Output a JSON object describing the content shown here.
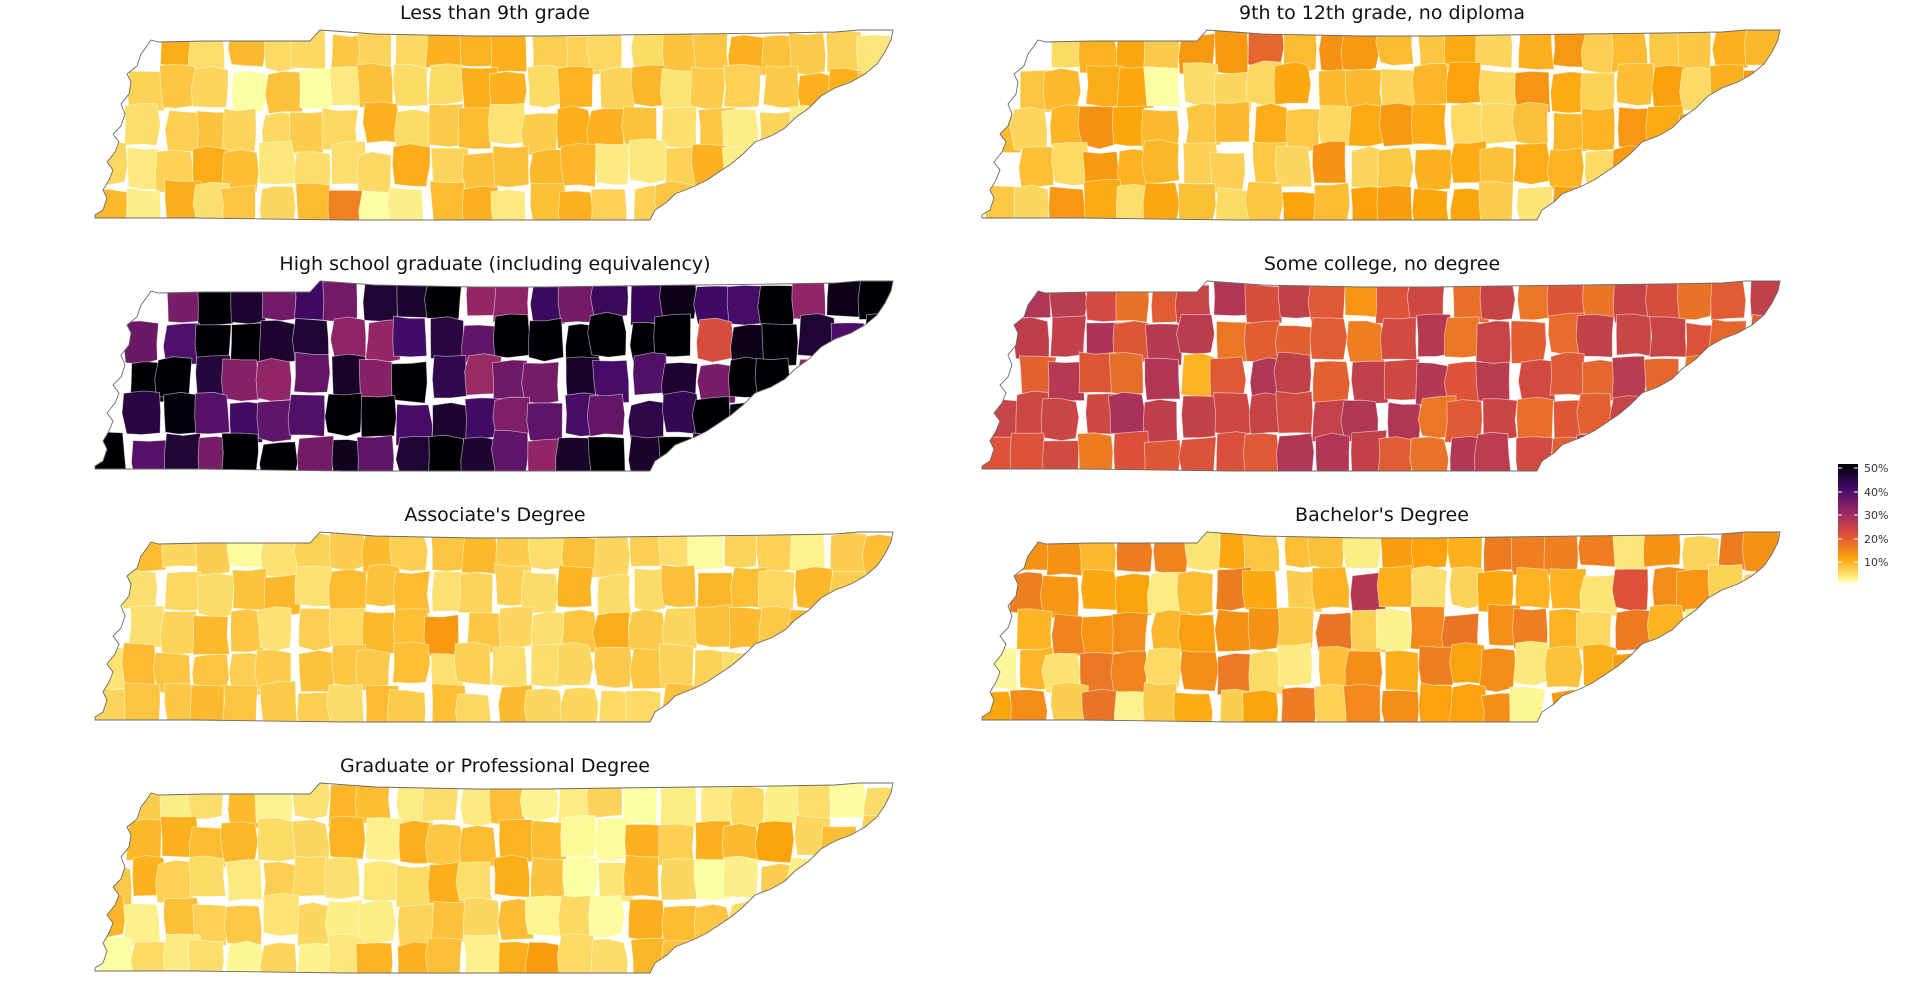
{
  "panels": [
    {
      "title": "Less than 9th grade",
      "base_color": "#f6dc4c",
      "variation": 0.16
    },
    {
      "title": "9th to 12th grade, no diploma",
      "base_color": "#fbb52a",
      "variation": 0.18
    },
    {
      "title": "High school graduate (including equivalency)",
      "base_color": "#2a0c55",
      "variation": 0.55
    },
    {
      "title": "Some college, no degree",
      "base_color": "#d9453f",
      "variation": 0.22
    },
    {
      "title": "Associate's Degree",
      "base_color": "#f6d448",
      "variation": 0.1
    },
    {
      "title": "Bachelor's Degree",
      "base_color": "#f7a52b",
      "variation": 0.3
    },
    {
      "title": "Graduate or Professional Degree",
      "base_color": "#f3de5a",
      "variation": 0.18
    }
  ],
  "legend": {
    "labels": [
      "50%",
      "40%",
      "30%",
      "20%",
      "10%"
    ],
    "scale_colors": [
      "#000004",
      "#420a68",
      "#932667",
      "#dd513a",
      "#fca50a",
      "#fcffa4"
    ]
  }
}
